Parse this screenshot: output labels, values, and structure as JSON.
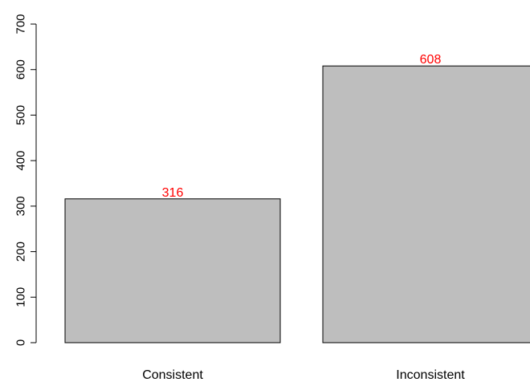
{
  "chart_data": {
    "type": "bar",
    "categories": [
      "Consistent",
      "Inconsistent"
    ],
    "values": [
      316,
      608
    ],
    "data_labels": [
      "316",
      "608"
    ],
    "title": "",
    "xlabel": "",
    "ylabel": "",
    "ylim": [
      0,
      700
    ],
    "yticks": [
      0,
      100,
      200,
      300,
      400,
      500,
      600,
      700
    ],
    "ytick_labels": [
      "0",
      "100",
      "200",
      "300",
      "400",
      "500",
      "600",
      "700"
    ],
    "grid": false,
    "legend": "none",
    "colors": {
      "bar_fill": "#bebebe",
      "bar_stroke": "#000000",
      "data_label": "#ff0000",
      "axis": "#000000"
    }
  }
}
